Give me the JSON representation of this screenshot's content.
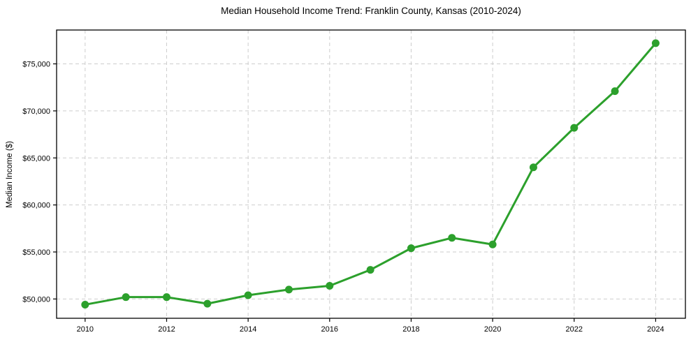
{
  "chart_data": {
    "type": "line",
    "title": "Median Household Income Trend: Franklin County, Kansas (2010-2024)",
    "xlabel": "",
    "ylabel": "Median Income ($)",
    "series_name": "Median Household Income",
    "x": [
      2010,
      2011,
      2012,
      2013,
      2014,
      2015,
      2016,
      2017,
      2018,
      2019,
      2020,
      2021,
      2022,
      2023,
      2024
    ],
    "values": [
      49400,
      50200,
      50200,
      49500,
      50400,
      51000,
      51400,
      53100,
      55400,
      56500,
      55800,
      64000,
      68200,
      72100,
      77200
    ],
    "xlim": [
      2009.3,
      2024.73
    ],
    "ylim": [
      47950,
      78600
    ],
    "yticks": [
      50000,
      55000,
      60000,
      65000,
      70000,
      75000
    ],
    "ytick_labels": [
      "$50,000",
      "$55,000",
      "$60,000",
      "$65,000",
      "$70,000",
      "$75,000"
    ],
    "xticks": [
      2010,
      2012,
      2014,
      2016,
      2018,
      2020,
      2022,
      2024
    ],
    "xtick_labels": [
      "2010",
      "2012",
      "2014",
      "2016",
      "2018",
      "2020",
      "2022",
      "2024"
    ],
    "legend": "none",
    "grid": "dashed",
    "colors": {
      "line": "#2ca02c",
      "marker": "#2ca02c",
      "grid": "#cdcdcd",
      "frame": "#000000",
      "background": "#ffffff",
      "text": "#000000"
    }
  }
}
